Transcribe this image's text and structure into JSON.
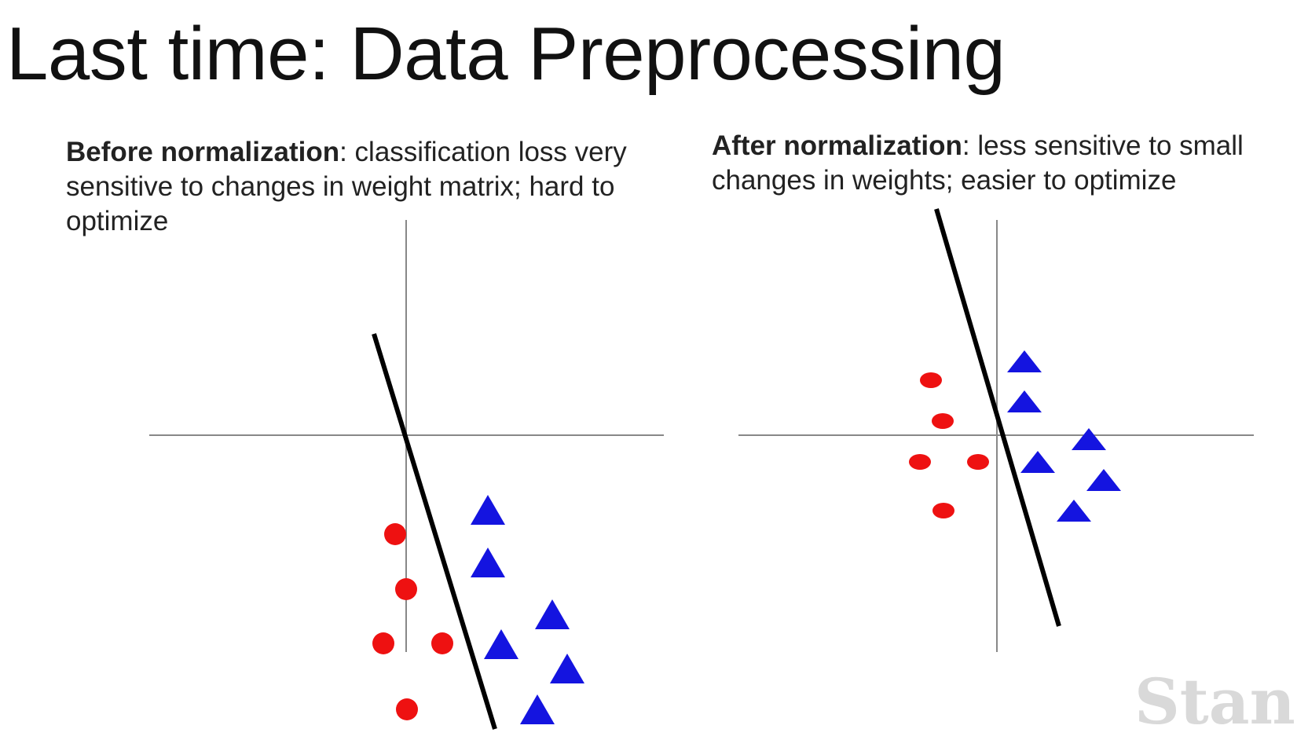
{
  "slide": {
    "title": "Last time: Data Preprocessing"
  },
  "panels": {
    "before": {
      "heading": "Before normalization",
      "text": ": classification loss very sensitive to changes in weight matrix; hard to optimize"
    },
    "after": {
      "heading": "After normalization",
      "text": ": less sensitive to small changes in weights; easier to optimize"
    }
  },
  "watermark": "Stanf",
  "colors": {
    "circle": "#ee1111",
    "triangle": "#1414e0",
    "axis": "#888888",
    "boundary": "#000000"
  }
}
